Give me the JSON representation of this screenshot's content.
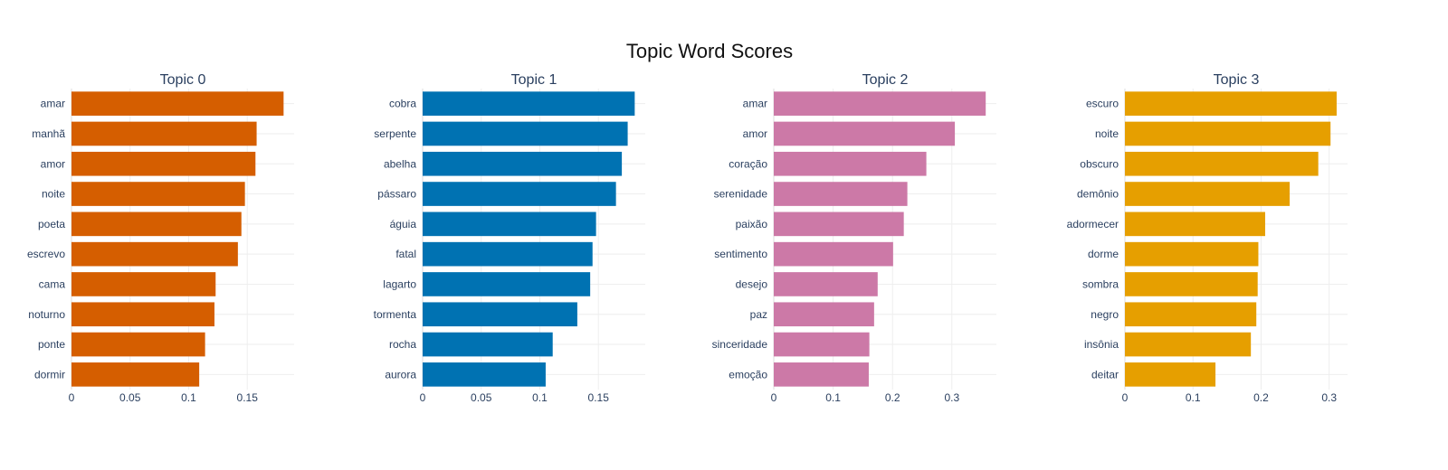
{
  "title": "Topic Word Scores",
  "chart_data": [
    {
      "type": "bar",
      "orientation": "horizontal",
      "title": "Topic 0",
      "color": "#D55E00",
      "categories": [
        "amar",
        "manhã",
        "amor",
        "noite",
        "poeta",
        "escrevo",
        "cama",
        "noturno",
        "ponte",
        "dormir"
      ],
      "values": [
        0.181,
        0.158,
        0.157,
        0.148,
        0.145,
        0.142,
        0.123,
        0.122,
        0.114,
        0.109
      ],
      "xlim": [
        0,
        0.19
      ],
      "xticks": [
        0,
        0.05,
        0.1,
        0.15
      ],
      "xtick_labels": [
        "0",
        "0.05",
        "0.1",
        "0.15"
      ],
      "grid": true
    },
    {
      "type": "bar",
      "orientation": "horizontal",
      "title": "Topic 1",
      "color": "#0072B2",
      "categories": [
        "cobra",
        "serpente",
        "abelha",
        "pássaro",
        "águia",
        "fatal",
        "lagarto",
        "tormenta",
        "rocha",
        "aurora"
      ],
      "values": [
        0.181,
        0.175,
        0.17,
        0.165,
        0.148,
        0.145,
        0.143,
        0.132,
        0.111,
        0.105
      ],
      "xlim": [
        0,
        0.19
      ],
      "xticks": [
        0,
        0.05,
        0.1,
        0.15
      ],
      "xtick_labels": [
        "0",
        "0.05",
        "0.1",
        "0.15"
      ],
      "grid": true
    },
    {
      "type": "bar",
      "orientation": "horizontal",
      "title": "Topic 2",
      "color": "#CC79A7",
      "categories": [
        "amar",
        "amor",
        "coração",
        "serenidade",
        "paixão",
        "sentimento",
        "desejo",
        "paz",
        "sinceridade",
        "emoção"
      ],
      "values": [
        0.357,
        0.305,
        0.257,
        0.225,
        0.219,
        0.201,
        0.175,
        0.169,
        0.161,
        0.16
      ],
      "xlim": [
        0,
        0.375
      ],
      "xticks": [
        0,
        0.1,
        0.2,
        0.3
      ],
      "xtick_labels": [
        "0",
        "0.1",
        "0.2",
        "0.3"
      ],
      "grid": true
    },
    {
      "type": "bar",
      "orientation": "horizontal",
      "title": "Topic 3",
      "color": "#E69F00",
      "categories": [
        "escuro",
        "noite",
        "obscuro",
        "demônio",
        "adormecer",
        "dorme",
        "sombra",
        "negro",
        "insônia",
        "deitar"
      ],
      "values": [
        0.311,
        0.302,
        0.284,
        0.242,
        0.206,
        0.196,
        0.195,
        0.193,
        0.185,
        0.133
      ],
      "xlim": [
        0,
        0.327
      ],
      "xticks": [
        0,
        0.1,
        0.2,
        0.3
      ],
      "xtick_labels": [
        "0",
        "0.1",
        "0.2",
        "0.3"
      ],
      "grid": true
    }
  ]
}
